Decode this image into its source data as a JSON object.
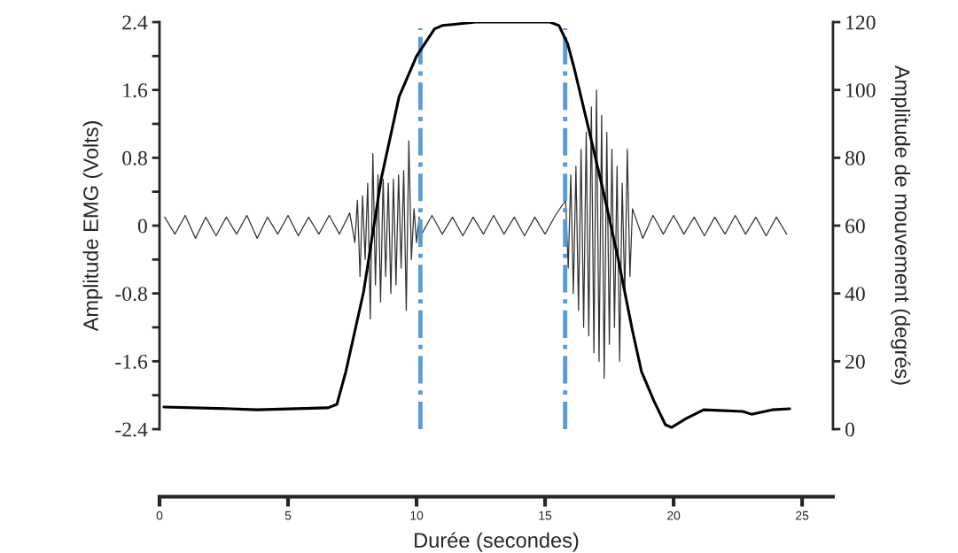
{
  "chart_data": {
    "type": "line",
    "xlabel": "Durée (secondes)",
    "ylabel": "Amplitude EMG (Volts)",
    "y2label": "Amplitude de mouvement (degrés)",
    "xlim": [
      0,
      26.2
    ],
    "xticks": [
      0,
      5,
      10,
      15,
      20,
      25
    ],
    "ylim": [
      -2.4,
      2.4
    ],
    "yticks": [
      -2.4,
      {
        "value": -2.0,
        "label": null
      },
      -1.6,
      {
        "value": -1.2,
        "label": null
      },
      -0.8,
      {
        "value": -0.4,
        "label": null
      },
      0,
      {
        "value": 0.4,
        "label": null
      },
      0.8,
      {
        "value": 1.2,
        "label": null
      },
      1.6,
      {
        "value": 2.0,
        "label": null
      },
      2.4
    ],
    "y2lim": [
      0,
      120
    ],
    "y2ticks": [
      0,
      20,
      40,
      60,
      80,
      100,
      120
    ],
    "grid": false,
    "legend": false,
    "marker": "none",
    "series": [
      {
        "color": "#333333",
        "line_style": "solid",
        "x": [
          0.2,
          0.6,
          1.0,
          1.4,
          1.8,
          2.2,
          2.6,
          3.0,
          3.4,
          3.8,
          4.2,
          4.6,
          5.0,
          5.4,
          5.8,
          6.2,
          6.6,
          7.0,
          7.4,
          7.6,
          7.7,
          7.8,
          7.9,
          8.0,
          8.1,
          8.2,
          8.3,
          8.4,
          8.5,
          8.6,
          8.7,
          8.8,
          8.9,
          9.0,
          9.1,
          9.2,
          9.3,
          9.4,
          9.5,
          9.6,
          9.7,
          9.8,
          9.9,
          10.0,
          10.1,
          10.2,
          10.6,
          11.0,
          11.4,
          11.8,
          12.2,
          12.6,
          13.0,
          13.4,
          13.8,
          14.2,
          14.6,
          15.0,
          15.4,
          15.8,
          15.9,
          16.0,
          16.1,
          16.2,
          16.3,
          16.4,
          16.5,
          16.6,
          16.7,
          16.8,
          16.9,
          17.0,
          17.1,
          17.2,
          17.3,
          17.4,
          17.5,
          17.6,
          17.7,
          17.8,
          17.9,
          18.0,
          18.1,
          18.2,
          18.3,
          18.4,
          18.8,
          19.2,
          19.6,
          20.0,
          20.4,
          20.8,
          21.2,
          21.6,
          22.0,
          22.4,
          22.8,
          23.2,
          23.6,
          24.0,
          24.4
        ],
        "values": [
          0.1,
          -0.1,
          0.12,
          -0.15,
          0.1,
          -0.12,
          0.1,
          -0.1,
          0.12,
          -0.15,
          0.1,
          -0.1,
          0.12,
          -0.12,
          0.1,
          -0.1,
          0.12,
          -0.1,
          0.15,
          -0.2,
          0.3,
          -0.6,
          0.35,
          -0.4,
          0.5,
          -1.1,
          0.85,
          -0.7,
          0.6,
          -0.9,
          0.55,
          -0.6,
          0.5,
          -0.8,
          0.55,
          -0.7,
          0.6,
          -0.5,
          0.65,
          -1.0,
          1.0,
          -0.4,
          0.2,
          -0.2,
          0.1,
          -0.1,
          0.12,
          -0.1,
          0.1,
          -0.12,
          0.1,
          -0.1,
          0.12,
          -0.1,
          0.1,
          -0.12,
          0.1,
          -0.1,
          0.12,
          0.3,
          -0.5,
          0.6,
          -0.8,
          0.7,
          -1.0,
          0.9,
          -1.2,
          1.1,
          -1.3,
          1.4,
          -1.5,
          1.6,
          -1.6,
          1.3,
          -1.8,
          1.1,
          -1.4,
          0.9,
          -1.2,
          0.7,
          -1.6,
          0.5,
          -0.8,
          0.9,
          -0.6,
          0.2,
          -0.15,
          0.12,
          -0.1,
          0.12,
          -0.1,
          0.1,
          -0.12,
          0.1,
          -0.1,
          0.12,
          -0.1,
          0.1,
          -0.12,
          0.1,
          -0.1
        ]
      },
      {
        "color": "#000000",
        "axis": "y2",
        "line_style": "solid",
        "x": [
          0.17,
          2.76,
          3.8,
          6.56,
          6.9,
          7.25,
          7.94,
          8.63,
          9.32,
          10.0,
          10.7,
          11.0,
          12.3,
          15.0,
          15.19,
          15.54,
          15.88,
          16.13,
          16.68,
          17.27,
          17.85,
          18.4,
          18.75,
          19.23,
          19.68,
          19.92,
          20.48,
          21.17,
          22.69,
          23.03,
          23.83,
          24.52
        ],
        "values": [
          6.5,
          6,
          5.7,
          6.3,
          7.3,
          17,
          40.5,
          74,
          98,
          110,
          118,
          119,
          120,
          120,
          120,
          119,
          113.6,
          106.5,
          89,
          70,
          50,
          29,
          17,
          8.4,
          1.3,
          0.5,
          3.1,
          5.7,
          5.2,
          4.4,
          5.7,
          6
        ]
      }
    ],
    "ref_lines": [
      {
        "axis": "x",
        "value": 10.15,
        "color": "#5b9bd5",
        "line_style": "dashdot"
      },
      {
        "axis": "x",
        "value": 15.78,
        "color": "#5b9bd5",
        "line_style": "dashdot"
      }
    ]
  }
}
